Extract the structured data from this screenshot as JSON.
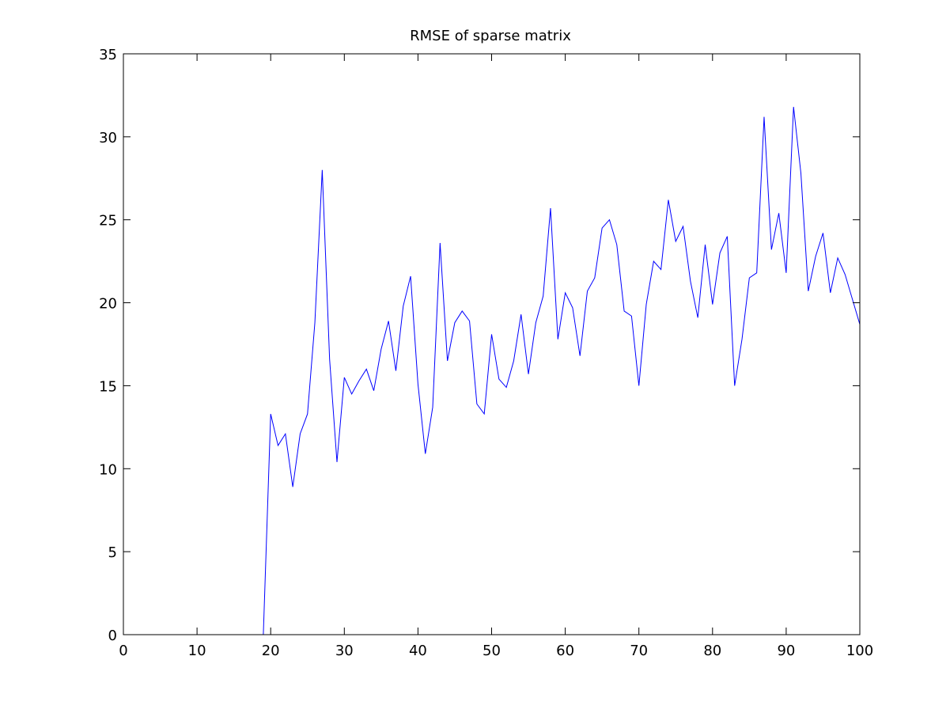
{
  "chart_data": {
    "type": "line",
    "title": "RMSE of sparse matrix",
    "xlabel": "",
    "ylabel": "",
    "xlim": [
      0,
      100
    ],
    "ylim": [
      0,
      35
    ],
    "x_ticks": [
      0,
      10,
      20,
      30,
      40,
      50,
      60,
      70,
      80,
      90,
      100
    ],
    "y_ticks": [
      0,
      5,
      10,
      15,
      20,
      25,
      30,
      35
    ],
    "grid": false,
    "legend": "none",
    "series": [
      {
        "color": "#0000ff",
        "x": [
          19,
          20,
          21,
          22,
          23,
          24,
          25,
          26,
          27,
          28,
          29,
          30,
          31,
          32,
          33,
          34,
          35,
          36,
          37,
          38,
          39,
          40,
          41,
          42,
          43,
          44,
          45,
          46,
          47,
          48,
          49,
          50,
          51,
          52,
          53,
          54,
          55,
          56,
          57,
          58,
          59,
          60,
          61,
          62,
          63,
          64,
          65,
          66,
          67,
          68,
          69,
          70,
          71,
          72,
          73,
          74,
          75,
          76,
          77,
          78,
          79,
          80,
          81,
          82,
          83,
          84,
          85,
          86,
          87,
          88,
          89,
          90,
          91,
          92,
          93,
          94,
          95,
          96,
          97,
          98,
          99,
          100
        ],
        "y": [
          0,
          13.3,
          11.4,
          12.1,
          8.9,
          12.1,
          13.3,
          18.8,
          28.0,
          16.6,
          10.4,
          15.5,
          14.5,
          15.3,
          16.0,
          14.7,
          17.2,
          18.9,
          15.9,
          19.8,
          21.6,
          15.1,
          10.9,
          13.7,
          23.6,
          16.5,
          18.8,
          19.5,
          18.9,
          13.9,
          13.3,
          18.1,
          15.4,
          14.9,
          16.5,
          19.3,
          15.7,
          18.8,
          20.4,
          25.7,
          17.8,
          20.6,
          19.7,
          16.8,
          20.7,
          21.5,
          24.5,
          25.0,
          23.5,
          19.5,
          19.2,
          15.0,
          19.9,
          22.5,
          22.0,
          26.2,
          23.7,
          24.6,
          21.3,
          19.1,
          23.5,
          19.9,
          23.0,
          24.0,
          15.0,
          17.8,
          21.5,
          21.8,
          31.2,
          23.2,
          25.4,
          21.8,
          31.8,
          27.8,
          20.7,
          22.8,
          24.2,
          20.6,
          22.7,
          21.7,
          20.2,
          18.7
        ]
      }
    ]
  }
}
